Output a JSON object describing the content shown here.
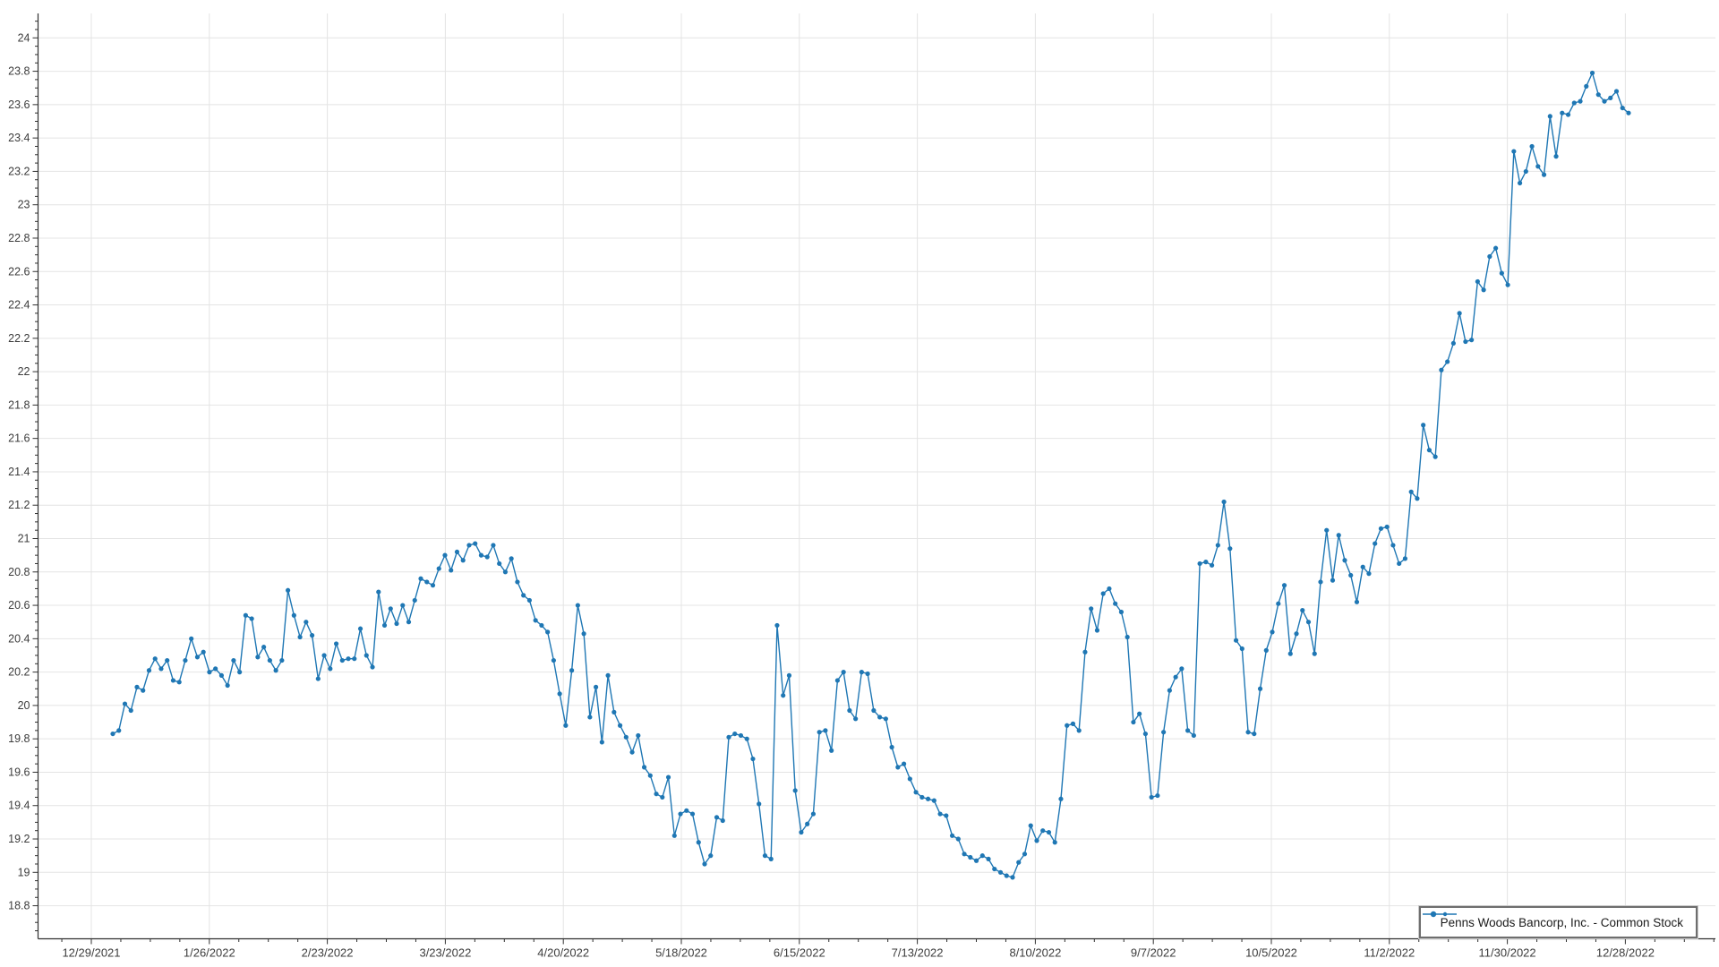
{
  "chart_data": {
    "type": "line",
    "title": "",
    "xlabel": "",
    "ylabel": "",
    "grid": true,
    "legend_position": "bottom-right",
    "x_tick_labels": [
      "12/29/2021",
      "1/26/2022",
      "2/23/2022",
      "3/23/2022",
      "4/20/2022",
      "5/18/2022",
      "6/15/2022",
      "7/13/2022",
      "8/10/2022",
      "9/7/2022",
      "10/5/2022",
      "11/2/2022",
      "11/30/2022",
      "12/28/2022"
    ],
    "y_tick_labels": [
      "18.8",
      "19",
      "19.2",
      "19.4",
      "19.6",
      "19.8",
      "20",
      "20.2",
      "20.4",
      "20.6",
      "20.8",
      "21",
      "21.2",
      "21.4",
      "21.6",
      "21.8",
      "22",
      "22.2",
      "22.4",
      "22.6",
      "22.8",
      "23",
      "23.2",
      "23.4",
      "23.6",
      "23.8",
      "24"
    ],
    "ylim": [
      18.6,
      24.15
    ],
    "series": [
      {
        "name": "Penns Woods Bancorp, Inc. - Common Stock",
        "color": "#1f77b4",
        "marker": "circle",
        "values": [
          19.83,
          19.85,
          20.01,
          19.97,
          20.11,
          20.09,
          20.21,
          20.28,
          20.22,
          20.27,
          20.15,
          20.14,
          20.27,
          20.4,
          20.29,
          20.32,
          20.2,
          20.22,
          20.18,
          20.12,
          20.27,
          20.2,
          20.54,
          20.52,
          20.29,
          20.35,
          20.27,
          20.21,
          20.27,
          20.69,
          20.54,
          20.41,
          20.5,
          20.42,
          20.16,
          20.3,
          20.22,
          20.37,
          20.27,
          20.28,
          20.28,
          20.46,
          20.3,
          20.23,
          20.68,
          20.48,
          20.58,
          20.49,
          20.6,
          20.5,
          20.63,
          20.76,
          20.74,
          20.72,
          20.82,
          20.9,
          20.81,
          20.92,
          20.87,
          20.96,
          20.97,
          20.9,
          20.89,
          20.96,
          20.85,
          20.8,
          20.88,
          20.74,
          20.66,
          20.63,
          20.51,
          20.48,
          20.44,
          20.27,
          20.07,
          19.88,
          20.21,
          20.6,
          20.43,
          19.93,
          20.11,
          19.78,
          20.18,
          19.96,
          19.88,
          19.81,
          19.72,
          19.82,
          19.63,
          19.58,
          19.47,
          19.45,
          19.57,
          19.22,
          19.35,
          19.37,
          19.35,
          19.18,
          19.05,
          19.1,
          19.33,
          19.31,
          19.81,
          19.83,
          19.82,
          19.8,
          19.68,
          19.41,
          19.1,
          19.08,
          20.48,
          20.06,
          20.18,
          19.49,
          19.24,
          19.29,
          19.35,
          19.84,
          19.85,
          19.73,
          20.15,
          20.2,
          19.97,
          19.92,
          20.2,
          20.19,
          19.97,
          19.93,
          19.92,
          19.75,
          19.63,
          19.65,
          19.56,
          19.48,
          19.45,
          19.44,
          19.43,
          19.35,
          19.34,
          19.22,
          19.2,
          19.11,
          19.09,
          19.07,
          19.1,
          19.08,
          19.02,
          19.0,
          18.98,
          18.97,
          19.06,
          19.11,
          19.28,
          19.19,
          19.25,
          19.24,
          19.18,
          19.44,
          19.88,
          19.89,
          19.85,
          20.32,
          20.58,
          20.45,
          20.67,
          20.7,
          20.61,
          20.56,
          20.41,
          19.9,
          19.95,
          19.83,
          19.45,
          19.46,
          19.84,
          20.09,
          20.17,
          20.22,
          19.85,
          19.82,
          20.85,
          20.86,
          20.84,
          20.96,
          21.22,
          20.94,
          20.39,
          20.34,
          19.84,
          19.83,
          20.1,
          20.33,
          20.44,
          20.61,
          20.72,
          20.31,
          20.43,
          20.57,
          20.5,
          20.31,
          20.74,
          21.05,
          20.75,
          21.02,
          20.87,
          20.78,
          20.62,
          20.83,
          20.79,
          20.97,
          21.06,
          21.07,
          20.96,
          20.85,
          20.88,
          21.28,
          21.24,
          21.68,
          21.53,
          21.49,
          22.01,
          22.06,
          22.17,
          22.35,
          22.18,
          22.19,
          22.54,
          22.49,
          22.69,
          22.74,
          22.59,
          22.52,
          23.32,
          23.13,
          23.2,
          23.35,
          23.23,
          23.18,
          23.53,
          23.29,
          23.55,
          23.54,
          23.61,
          23.62,
          23.71,
          23.79,
          23.66,
          23.62,
          23.64,
          23.68,
          23.58,
          23.55
        ]
      }
    ],
    "colors": {
      "line": "#1f77b4",
      "grid": "#e4e4e4",
      "axis": "#303030",
      "tick_label": "#3c3c3c",
      "background": "#ffffff",
      "legend_border": "#6e6e6e"
    }
  },
  "legend": {
    "label": "Penns Woods Bancorp, Inc. - Common Stock"
  }
}
